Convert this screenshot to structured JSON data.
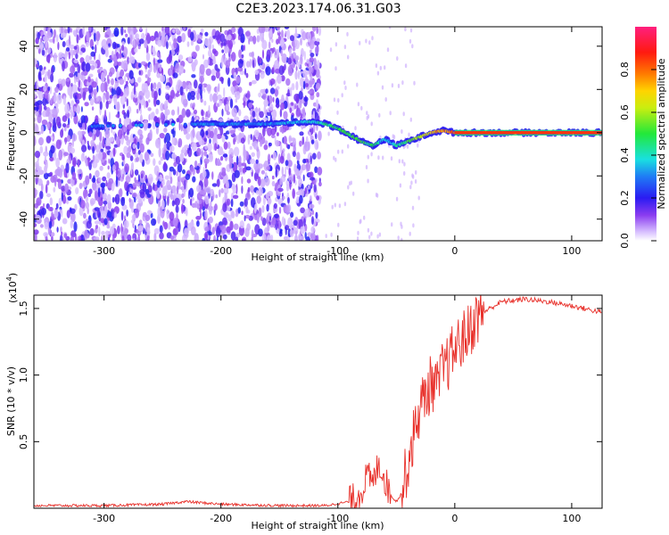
{
  "title": "C2E3.2023.174.06.31.G03",
  "chart_data": [
    {
      "type": "heatmap",
      "xlabel": "Height of straight line (km)",
      "ylabel": "Frequency (Hz)",
      "xlim": [
        -360,
        126
      ],
      "ylim": [
        -50,
        49
      ],
      "x_ticks": [
        -300,
        -200,
        -100,
        0,
        100
      ],
      "y_ticks": [
        -40,
        -20,
        0,
        20,
        40
      ],
      "colorbar": {
        "label": "Normalized spectral amplitude",
        "range": [
          0.0,
          1.0
        ],
        "ticks": [
          0.0,
          0.2,
          0.4,
          0.6,
          0.8
        ],
        "tick_labels": [
          "0.0",
          "0.2",
          "0.4",
          "0.6",
          "0.8"
        ]
      },
      "ridge_trace": [
        {
          "x": -310,
          "f": 3,
          "a": 0.3
        },
        {
          "x": -220,
          "f": 4,
          "a": 0.3
        },
        {
          "x": -200,
          "f": 4,
          "a": 0.3
        },
        {
          "x": -180,
          "f": 4,
          "a": 0.3
        },
        {
          "x": -160,
          "f": 4,
          "a": 0.3
        },
        {
          "x": -130,
          "f": 5,
          "a": 0.35
        },
        {
          "x": -120,
          "f": 5,
          "a": 0.4
        },
        {
          "x": -110,
          "f": 4,
          "a": 0.45
        },
        {
          "x": -100,
          "f": 2,
          "a": 0.45
        },
        {
          "x": -90,
          "f": -1,
          "a": 0.5
        },
        {
          "x": -80,
          "f": -4,
          "a": 0.5
        },
        {
          "x": -70,
          "f": -6,
          "a": 0.45
        },
        {
          "x": -60,
          "f": -3,
          "a": 0.35
        },
        {
          "x": -50,
          "f": -6,
          "a": 0.4
        },
        {
          "x": -40,
          "f": -4,
          "a": 0.5
        },
        {
          "x": -30,
          "f": -2,
          "a": 0.6
        },
        {
          "x": -20,
          "f": 0,
          "a": 0.7
        },
        {
          "x": -10,
          "f": 1,
          "a": 0.75
        },
        {
          "x": 0,
          "f": 0,
          "a": 0.8
        },
        {
          "x": 50,
          "f": 0,
          "a": 0.85
        },
        {
          "x": 126,
          "f": 0,
          "a": 0.9
        }
      ]
    },
    {
      "type": "line",
      "xlabel": "Height of straight line (km)",
      "ylabel": "SNR (10 * v/v)",
      "multiplier_label": "(x10",
      "multiplier_exp": "4",
      "multiplier_close": ")",
      "xlim": [
        -360,
        126
      ],
      "ylim": [
        0.0,
        1.6
      ],
      "x_ticks": [
        -300,
        -200,
        -100,
        0,
        100
      ],
      "y_ticks": [
        0.5,
        1.0,
        1.5
      ],
      "y_tick_labels": [
        "0.5",
        "1.0",
        "1.5"
      ],
      "color": "#e8302a",
      "series": [
        {
          "x": [
            -360,
            -300,
            -250,
            -230,
            -200,
            -150,
            -110,
            -90,
            -80,
            -75,
            -70,
            -65,
            -60,
            -55,
            -50,
            -45,
            -40,
            -35,
            -30,
            -25,
            -20,
            -15,
            -10,
            -5,
            0,
            10,
            20,
            30,
            40,
            60,
            80,
            100,
            126
          ],
          "y": [
            0.02,
            0.02,
            0.03,
            0.05,
            0.03,
            0.02,
            0.02,
            0.05,
            0.12,
            0.25,
            0.18,
            0.35,
            0.22,
            0.1,
            0.05,
            0.12,
            0.35,
            0.55,
            0.75,
            0.85,
            0.95,
            0.9,
            1.05,
            1.1,
            1.2,
            1.3,
            1.45,
            1.5,
            1.55,
            1.57,
            1.55,
            1.52,
            1.47
          ]
        }
      ]
    }
  ]
}
